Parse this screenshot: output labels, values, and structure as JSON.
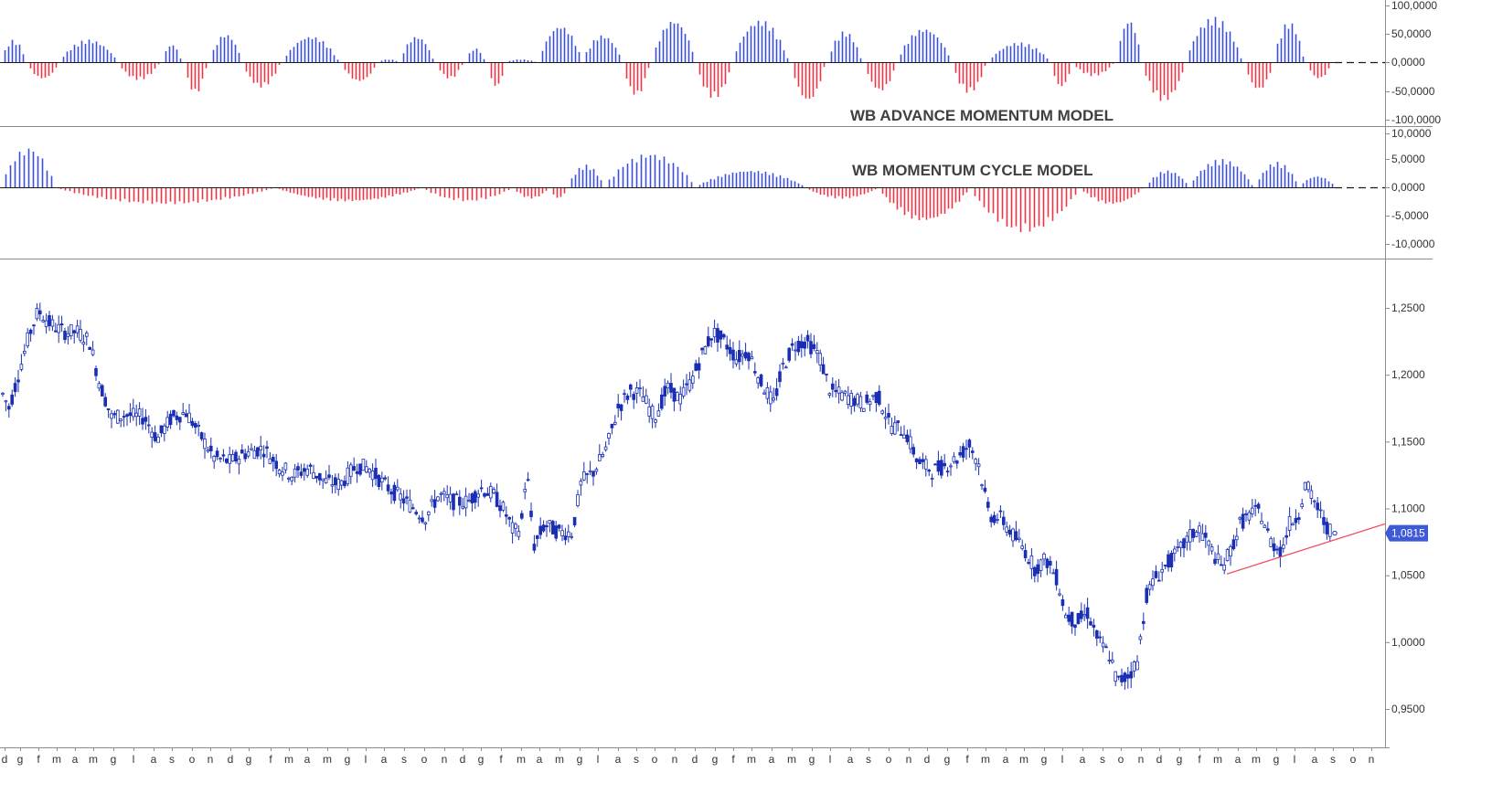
{
  "chart_data": [
    {
      "type": "bar",
      "title": "WB ADVANCE MOMENTUM  MODEL",
      "y_ticks": [
        "100,0000",
        "50,0000",
        "0,0000",
        "-50,0000",
        "-100,0000"
      ],
      "ylim": [
        -100,
        100
      ],
      "zero_line": "dashed",
      "colors": {
        "positive": "#3b4fd8",
        "negative": "#ee3344"
      },
      "segments": [
        [
          4,
          40,
          28
        ],
        [
          4,
          -30,
          64
        ],
        [
          4,
          40,
          128
        ],
        [
          4,
          -32,
          174
        ],
        [
          4,
          32,
          198
        ],
        [
          4,
          -56,
          226
        ],
        [
          4,
          50,
          264
        ],
        [
          4,
          -45,
          306
        ],
        [
          4,
          46,
          370
        ],
        [
          4,
          -35,
          412
        ],
        [
          4,
          5,
          436
        ],
        [
          4,
          46,
          474
        ],
        [
          4,
          -30,
          506
        ],
        [
          4,
          25,
          530
        ],
        [
          4,
          -45,
          552
        ],
        [
          4,
          5,
          586
        ],
        [
          4,
          65,
          636
        ],
        [
          4,
          48,
          680
        ],
        [
          4,
          -60,
          710
        ],
        [
          4,
          75,
          760
        ],
        [
          4,
          -65,
          800
        ],
        [
          4,
          75,
          862
        ],
        [
          4,
          -70,
          902
        ],
        [
          4,
          55,
          942
        ],
        [
          4,
          -52,
          980
        ],
        [
          4,
          60,
          1040
        ],
        [
          4,
          -55,
          1078
        ],
        [
          4,
          35,
          1148
        ],
        [
          4,
          -45,
          1172
        ],
        [
          4,
          -25,
          1218
        ],
        [
          4,
          75,
          1248
        ],
        [
          4,
          -70,
          1296
        ],
        [
          4,
          80,
          1358
        ],
        [
          4,
          -50,
          1392
        ],
        [
          4,
          72,
          1426
        ],
        [
          4,
          -30,
          1456
        ]
      ]
    },
    {
      "type": "bar",
      "title": "WB MOMENTUM CYCLE   MODEL",
      "y_ticks": [
        "10,0000",
        "5,0000",
        "0,0000",
        "-5,0000",
        "-10,0000"
      ],
      "ylim": [
        -10,
        10
      ],
      "zero_line": "dashed",
      "colors": {
        "positive": "#3b4fd8",
        "negative": "#ee3344"
      },
      "segments": [
        [
          5,
          7,
          60
        ],
        [
          5,
          -3,
          300
        ],
        [
          4,
          -2.5,
          460
        ],
        [
          5,
          -2.5,
          560
        ],
        [
          4,
          -2,
          600
        ],
        [
          4,
          -2,
          620
        ],
        [
          4,
          4,
          660
        ],
        [
          5,
          6,
          760
        ],
        [
          4,
          3,
          880
        ],
        [
          4,
          -2,
          960
        ],
        [
          4,
          -6,
          1060
        ],
        [
          5,
          -8,
          1180
        ],
        [
          4,
          -3,
          1250
        ],
        [
          4,
          3,
          1300
        ],
        [
          4,
          5,
          1370
        ],
        [
          4,
          4.5,
          1420
        ],
        [
          4,
          2,
          1460
        ]
      ]
    },
    {
      "type": "candlestick",
      "y_ticks": [
        "1,2500",
        "1,2000",
        "1,1500",
        "1,1000",
        "1,0500",
        "1,0000",
        "0,9500"
      ],
      "ylim": [
        0.925,
        1.29
      ],
      "last_price": "1,0815",
      "colors": {
        "candle": "#1a2fb5",
        "trendline": "#f25060",
        "price_tag": "#3e5ad6"
      },
      "trendline": [
        [
          1342,
          1.051
        ],
        [
          1515,
          1.0885
        ]
      ],
      "last_point": [
        1460,
        1.0815
      ],
      "path": [
        [
          0,
          1.19
        ],
        [
          10,
          1.175
        ],
        [
          22,
          1.205
        ],
        [
          32,
          1.23
        ],
        [
          42,
          1.248
        ],
        [
          55,
          1.238
        ],
        [
          70,
          1.232
        ],
        [
          85,
          1.232
        ],
        [
          98,
          1.225
        ],
        [
          108,
          1.196
        ],
        [
          122,
          1.168
        ],
        [
          138,
          1.17
        ],
        [
          158,
          1.168
        ],
        [
          172,
          1.152
        ],
        [
          188,
          1.168
        ],
        [
          204,
          1.172
        ],
        [
          218,
          1.156
        ],
        [
          234,
          1.138
        ],
        [
          252,
          1.135
        ],
        [
          270,
          1.142
        ],
        [
          288,
          1.145
        ],
        [
          305,
          1.132
        ],
        [
          320,
          1.125
        ],
        [
          338,
          1.13
        ],
        [
          356,
          1.12
        ],
        [
          372,
          1.118
        ],
        [
          390,
          1.132
        ],
        [
          404,
          1.13
        ],
        [
          420,
          1.118
        ],
        [
          435,
          1.11
        ],
        [
          450,
          1.102
        ],
        [
          465,
          1.093
        ],
        [
          480,
          1.11
        ],
        [
          496,
          1.105
        ],
        [
          512,
          1.105
        ],
        [
          526,
          1.115
        ],
        [
          540,
          1.11
        ],
        [
          552,
          1.098
        ],
        [
          562,
          1.082
        ],
        [
          570,
          1.086
        ],
        [
          576,
          1.13
        ],
        [
          584,
          1.072
        ],
        [
          596,
          1.088
        ],
        [
          612,
          1.082
        ],
        [
          626,
          1.082
        ],
        [
          636,
          1.12
        ],
        [
          650,
          1.128
        ],
        [
          664,
          1.146
        ],
        [
          676,
          1.175
        ],
        [
          690,
          1.188
        ],
        [
          702,
          1.185
        ],
        [
          716,
          1.168
        ],
        [
          730,
          1.19
        ],
        [
          744,
          1.182
        ],
        [
          756,
          1.195
        ],
        [
          768,
          1.215
        ],
        [
          780,
          1.232
        ],
        [
          792,
          1.225
        ],
        [
          806,
          1.212
        ],
        [
          818,
          1.218
        ],
        [
          832,
          1.195
        ],
        [
          846,
          1.178
        ],
        [
          856,
          1.205
        ],
        [
          868,
          1.222
        ],
        [
          882,
          1.225
        ],
        [
          896,
          1.215
        ],
        [
          908,
          1.188
        ],
        [
          920,
          1.185
        ],
        [
          932,
          1.182
        ],
        [
          946,
          1.178
        ],
        [
          960,
          1.185
        ],
        [
          974,
          1.162
        ],
        [
          990,
          1.158
        ],
        [
          1004,
          1.135
        ],
        [
          1020,
          1.128
        ],
        [
          1034,
          1.132
        ],
        [
          1048,
          1.138
        ],
        [
          1060,
          1.148
        ],
        [
          1070,
          1.135
        ],
        [
          1082,
          1.095
        ],
        [
          1096,
          1.092
        ],
        [
          1108,
          1.08
        ],
        [
          1120,
          1.07
        ],
        [
          1132,
          1.055
        ],
        [
          1144,
          1.062
        ],
        [
          1156,
          1.048
        ],
        [
          1166,
          1.02
        ],
        [
          1178,
          1.015
        ],
        [
          1190,
          1.022
        ],
        [
          1202,
          1.0
        ],
        [
          1214,
          0.99
        ],
        [
          1222,
          0.97
        ],
        [
          1234,
          0.975
        ],
        [
          1244,
          0.985
        ],
        [
          1254,
          1.035
        ],
        [
          1264,
          1.048
        ],
        [
          1276,
          1.058
        ],
        [
          1290,
          1.068
        ],
        [
          1300,
          1.078
        ],
        [
          1312,
          1.085
        ],
        [
          1324,
          1.07
        ],
        [
          1336,
          1.056
        ],
        [
          1346,
          1.068
        ],
        [
          1356,
          1.088
        ],
        [
          1366,
          1.095
        ],
        [
          1378,
          1.098
        ],
        [
          1390,
          1.075
        ],
        [
          1402,
          1.068
        ],
        [
          1410,
          1.088
        ],
        [
          1420,
          1.095
        ],
        [
          1428,
          1.118
        ],
        [
          1438,
          1.105
        ],
        [
          1448,
          1.09
        ],
        [
          1456,
          1.082
        ]
      ]
    }
  ],
  "x_axis": {
    "ticks": [
      [
        "d",
        5
      ],
      [
        "g",
        22
      ],
      [
        "f",
        42
      ],
      [
        "m",
        62
      ],
      [
        "a",
        82
      ],
      [
        "m",
        102
      ],
      [
        "g",
        124
      ],
      [
        "l",
        146
      ],
      [
        "a",
        168
      ],
      [
        "s",
        188
      ],
      [
        "o",
        210
      ],
      [
        "n",
        230
      ],
      [
        "d",
        252
      ],
      [
        "g",
        272
      ],
      [
        "f",
        296
      ],
      [
        "m",
        316
      ],
      [
        "a",
        336
      ],
      [
        "m",
        358
      ],
      [
        "g",
        380
      ],
      [
        "l",
        400
      ],
      [
        "a",
        420
      ],
      [
        "s",
        442
      ],
      [
        "o",
        464
      ],
      [
        "n",
        486
      ],
      [
        "d",
        506
      ],
      [
        "g",
        526
      ],
      [
        "f",
        548
      ],
      [
        "m",
        570
      ],
      [
        "a",
        590
      ],
      [
        "m",
        612
      ],
      [
        "g",
        634
      ],
      [
        "l",
        654
      ],
      [
        "a",
        676
      ],
      [
        "s",
        696
      ],
      [
        "o",
        716
      ],
      [
        "n",
        738
      ],
      [
        "d",
        760
      ],
      [
        "g",
        782
      ],
      [
        "f",
        802
      ],
      [
        "m",
        822
      ],
      [
        "a",
        844
      ],
      [
        "m",
        866
      ],
      [
        "g",
        888
      ],
      [
        "l",
        908
      ],
      [
        "a",
        930
      ],
      [
        "s",
        950
      ],
      [
        "o",
        972
      ],
      [
        "n",
        994
      ],
      [
        "d",
        1014
      ],
      [
        "g",
        1036
      ],
      [
        "f",
        1058
      ],
      [
        "m",
        1078
      ],
      [
        "a",
        1100
      ],
      [
        "m",
        1120
      ],
      [
        "g",
        1142
      ],
      [
        "l",
        1162
      ],
      [
        "a",
        1184
      ],
      [
        "s",
        1206
      ],
      [
        "o",
        1226
      ],
      [
        "n",
        1248
      ],
      [
        "d",
        1268
      ],
      [
        "g",
        1290
      ],
      [
        "f",
        1312
      ],
      [
        "m",
        1332
      ],
      [
        "a",
        1354
      ],
      [
        "m",
        1374
      ],
      [
        "g",
        1396
      ],
      [
        "l",
        1416
      ],
      [
        "a",
        1438
      ],
      [
        "s",
        1458
      ],
      [
        "o",
        1480
      ],
      [
        "n",
        1500
      ]
    ]
  }
}
